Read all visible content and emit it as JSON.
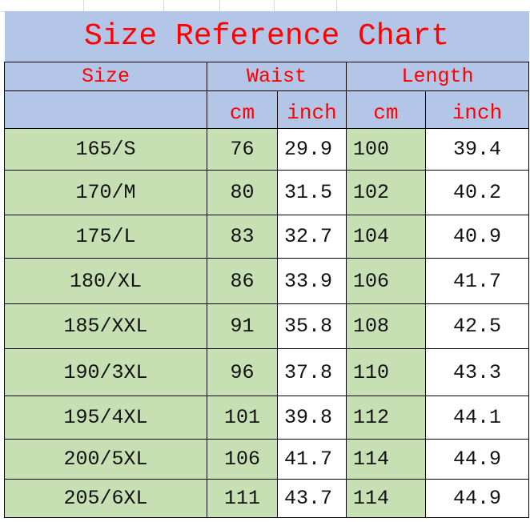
{
  "title": "Size Reference Chart",
  "colors": {
    "header_bg": "#b4c6e7",
    "header_text": "#ff0000",
    "highlight_bg": "#c6e0b4"
  },
  "headers": {
    "size": "Size",
    "waist": "Waist",
    "length": "Length"
  },
  "subheaders": {
    "waist_cm": "cm",
    "waist_inch": "inch",
    "length_cm": "cm",
    "length_inch": "inch"
  },
  "rows": [
    {
      "size": "165/S",
      "waist_cm": "76",
      "waist_inch": "29.9",
      "length_cm": "100",
      "length_inch": "39.4"
    },
    {
      "size": "170/M",
      "waist_cm": "80",
      "waist_inch": "31.5",
      "length_cm": "102",
      "length_inch": "40.2"
    },
    {
      "size": "175/L",
      "waist_cm": "83",
      "waist_inch": "32.7",
      "length_cm": "104",
      "length_inch": "40.9"
    },
    {
      "size": "180/XL",
      "waist_cm": "86",
      "waist_inch": "33.9",
      "length_cm": "106",
      "length_inch": "41.7"
    },
    {
      "size": "185/XXL",
      "waist_cm": "91",
      "waist_inch": "35.8",
      "length_cm": "108",
      "length_inch": "42.5"
    },
    {
      "size": "190/3XL",
      "waist_cm": "96",
      "waist_inch": "37.8",
      "length_cm": "110",
      "length_inch": "43.3"
    },
    {
      "size": "195/4XL",
      "waist_cm": "101",
      "waist_inch": "39.8",
      "length_cm": "112",
      "length_inch": "44.1"
    },
    {
      "size": "200/5XL",
      "waist_cm": "106",
      "waist_inch": "41.7",
      "length_cm": "114",
      "length_inch": "44.9"
    },
    {
      "size": "205/6XL",
      "waist_cm": "111",
      "waist_inch": "43.7",
      "length_cm": "114",
      "length_inch": "44.9"
    }
  ]
}
